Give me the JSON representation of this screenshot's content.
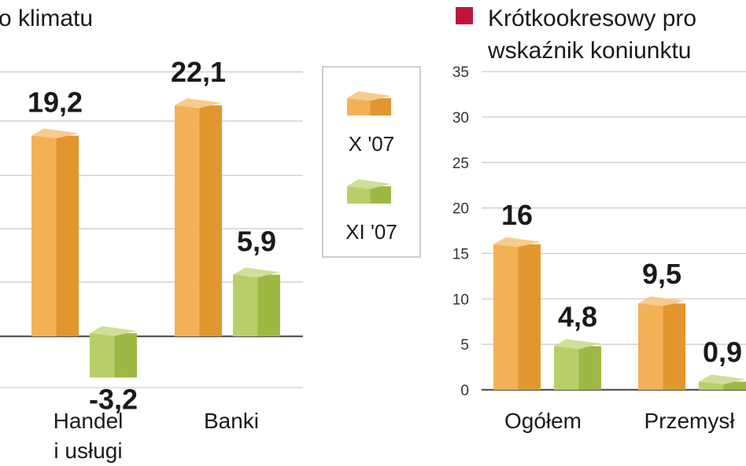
{
  "left_chart": {
    "title": "o klimatu",
    "categories": [
      "Handel i usługi",
      "Banki"
    ],
    "category_lines": [
      [
        "Handel",
        "i usługi"
      ],
      [
        "Banki"
      ]
    ],
    "series": [
      {
        "name": "X '07",
        "values": [
          19.2,
          22.1
        ]
      },
      {
        "name": "XI '07",
        "values": [
          -3.2,
          5.9
        ]
      }
    ],
    "value_labels": [
      [
        "19,2",
        "22,1"
      ],
      [
        "-3,2",
        "5,9"
      ]
    ]
  },
  "legend": [
    {
      "label": "X '07",
      "color": "#f0a030"
    },
    {
      "label": "XI '07",
      "color": "#a8c448"
    }
  ],
  "right_chart": {
    "marker_color": "#c0143c",
    "title_line1": "Krótkookresowy pro",
    "title_line2": "wskaźnik koniunktu",
    "y_ticks": [
      "35",
      "30",
      "25",
      "20",
      "15",
      "10",
      "5",
      "0"
    ],
    "categories": [
      "Ogółem",
      "Przemysł"
    ],
    "series": [
      {
        "name": "X '07",
        "values": [
          16,
          9.5
        ]
      },
      {
        "name": "XI '07",
        "values": [
          4.8,
          0.9
        ]
      }
    ],
    "value_labels": [
      [
        "16",
        "9,5"
      ],
      [
        "4,8",
        "0,9"
      ]
    ]
  },
  "chart_data": [
    {
      "type": "bar",
      "title": "o klimatu",
      "categories": [
        "Handel i usługi",
        "Banki"
      ],
      "series": [
        {
          "name": "X '07",
          "values": [
            19.2,
            22.1
          ]
        },
        {
          "name": "XI '07",
          "values": [
            -3.2,
            5.9
          ]
        }
      ],
      "legend": "right"
    },
    {
      "type": "bar",
      "title": "Krótkookresowy pro wskaźnik koniunktu",
      "categories": [
        "Ogółem",
        "Przemysł"
      ],
      "series": [
        {
          "name": "X '07",
          "values": [
            16,
            9.5
          ]
        },
        {
          "name": "XI '07",
          "values": [
            4.8,
            0.9
          ]
        }
      ],
      "ylim": [
        0,
        35
      ],
      "yticks": [
        0,
        5,
        10,
        15,
        20,
        25,
        30,
        35
      ],
      "grid": true
    }
  ]
}
